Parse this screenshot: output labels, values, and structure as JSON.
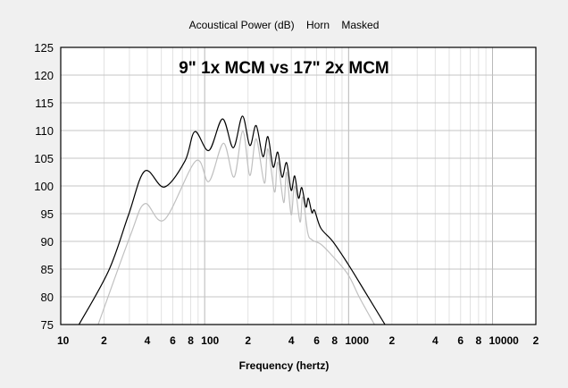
{
  "chart_data": {
    "type": "line",
    "title": "Acoustical Power (dB)    Horn    Masked",
    "annotation": "9\" 1x MCM vs 17\" 2x MCM",
    "xlabel": "Frequency (hertz)",
    "ylabel": "",
    "xscale": "log",
    "xlim": [
      10,
      20000
    ],
    "ylim": [
      75,
      125
    ],
    "grid": true,
    "yticks": [
      75,
      80,
      85,
      90,
      95,
      100,
      105,
      110,
      115,
      120,
      125
    ],
    "xticks": [
      {
        "value": 10,
        "label": "10"
      },
      {
        "value": 20,
        "label": "2"
      },
      {
        "value": 40,
        "label": "4"
      },
      {
        "value": 60,
        "label": "6"
      },
      {
        "value": 80,
        "label": "8"
      },
      {
        "value": 100,
        "label": "100"
      },
      {
        "value": 200,
        "label": "2"
      },
      {
        "value": 400,
        "label": "4"
      },
      {
        "value": 600,
        "label": "6"
      },
      {
        "value": 800,
        "label": "8"
      },
      {
        "value": 1000,
        "label": "1000"
      },
      {
        "value": 2000,
        "label": "2"
      },
      {
        "value": 4000,
        "label": "4"
      },
      {
        "value": 6000,
        "label": "6"
      },
      {
        "value": 8000,
        "label": "8"
      },
      {
        "value": 10000,
        "label": "10000"
      },
      {
        "value": 20000,
        "label": "2"
      }
    ],
    "series": [
      {
        "name": "17\" 2x MCM",
        "color": "#000000",
        "x": [
          13.4,
          21.6,
          29.6,
          38.4,
          52.5,
          73,
          85.5,
          107,
          133,
          158,
          183,
          206,
          228,
          254,
          275,
          299,
          322,
          345,
          371,
          399,
          422,
          449,
          473,
          505,
          525,
          556,
          580,
          641,
          776,
          986,
          1194,
          1790
        ],
        "y": [
          75,
          84.8,
          94.8,
          102.7,
          99.8,
          104.5,
          109.8,
          106.4,
          112.1,
          106.9,
          112.6,
          107.3,
          110.9,
          105.3,
          108.9,
          103.4,
          106.1,
          101.6,
          104.2,
          99.2,
          101.8,
          97.8,
          99.7,
          96.2,
          97.8,
          95.2,
          95.6,
          92.4,
          90.0,
          86.0,
          82.5,
          75
        ]
      },
      {
        "name": "9\" 1x MCM",
        "color": "#c0c0c0",
        "x": [
          18.2,
          30.5,
          38.4,
          52.5,
          86.7,
          107,
          135,
          160,
          184,
          206,
          228,
          260,
          275,
          306,
          322,
          354,
          371,
          399,
          422,
          460,
          480,
          520,
          556,
          641,
          740,
          986,
          1194,
          1513
        ],
        "y": [
          75,
          91.1,
          96.8,
          93.9,
          104.5,
          100.8,
          107.7,
          101.6,
          109.9,
          101.9,
          108.5,
          100.5,
          106.7,
          98.9,
          104.3,
          97.0,
          102.5,
          94.8,
          100.0,
          93.5,
          98.0,
          91.6,
          90.3,
          89.5,
          87.9,
          84.1,
          79.8,
          75
        ]
      }
    ]
  }
}
